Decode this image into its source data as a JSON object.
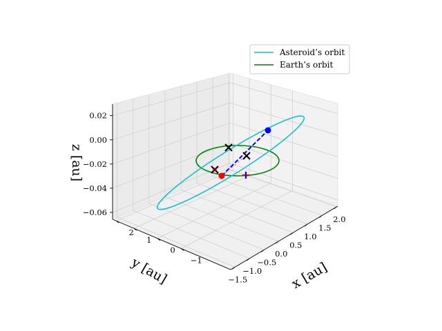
{
  "chart_data": {
    "type": "line",
    "projection": "3d",
    "legend": [
      {
        "name": "Asteroid’s orbit",
        "color": "#17becf"
      },
      {
        "name": "Earth’s orbit",
        "color": "#008000"
      }
    ],
    "legend_placement": "top-right",
    "xlabel": "x [au]",
    "ylabel": "y [au]",
    "zlabel": "z [au]",
    "xlim": [
      -1.5,
      2.0
    ],
    "ylim": [
      -1.0,
      2.5
    ],
    "zlim": [
      -0.06,
      0.035
    ],
    "x_ticks": [
      "−1.5",
      "−1.0",
      "−0.5",
      "0.0",
      "0.5",
      "1.0",
      "1.5",
      "2.0"
    ],
    "y_ticks": [
      "−1",
      "0",
      "1",
      "2"
    ],
    "z_ticks": [
      "−0.06",
      "−0.04",
      "−0.02",
      "0.00",
      "0.02"
    ],
    "grid": true,
    "series": [
      {
        "name": "Asteroid’s orbit",
        "color": "#17becf",
        "orbit": {
          "a": 1.45,
          "e": 0.5,
          "inclination_deg": 1.2,
          "node_deg": 40,
          "peri_deg": 70
        }
      },
      {
        "name": "Earth’s orbit",
        "color": "#008000",
        "orbit": {
          "a": 1.0,
          "e": 0.017,
          "inclination_deg": 0,
          "node_deg": 0,
          "peri_deg": 0
        }
      }
    ],
    "markers": [
      {
        "label": "asteroid-position",
        "marker": "o",
        "color": "#0000ff",
        "point": [
          0.3,
          1.55,
          0.012
        ]
      },
      {
        "label": "earth-position",
        "marker": "o",
        "color": "#ff0000",
        "point": [
          -0.4,
          0.6,
          0.0
        ]
      },
      {
        "label": "x-mark-1",
        "marker": "x",
        "color": "#000000",
        "point": [
          0.0,
          0.0,
          0.0
        ]
      },
      {
        "label": "x-mark-2",
        "marker": "x",
        "color": "#000000",
        "point": [
          0.15,
          0.95,
          0.0
        ]
      },
      {
        "label": "x-mark-3",
        "marker": "x",
        "color": "#000000",
        "point": [
          -0.55,
          0.3,
          0.0
        ]
      },
      {
        "label": "plus-mark",
        "marker": "+",
        "color": "#800080",
        "point": [
          0.25,
          0.6,
          -0.01
        ]
      }
    ],
    "dashed_lines": [
      {
        "color": "#0000ff",
        "from": [
          -0.4,
          0.6,
          0.0
        ],
        "to": [
          0.3,
          1.55,
          0.012
        ]
      },
      {
        "color": "#ff6666",
        "from": [
          -0.4,
          0.6,
          0.0
        ],
        "to": [
          -0.55,
          0.3,
          0.0
        ]
      }
    ]
  }
}
